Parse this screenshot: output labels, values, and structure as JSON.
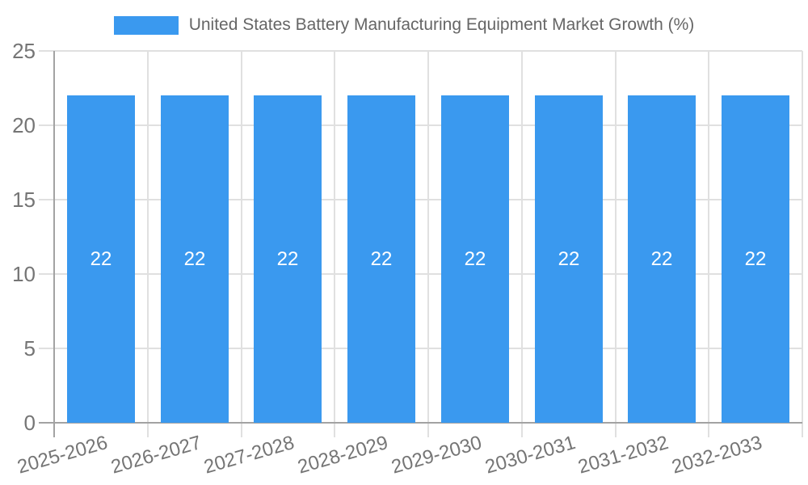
{
  "chart_data": {
    "type": "bar",
    "title": "United States Battery Manufacturing Equipment Market Growth (%)",
    "series_name": "United States Battery Manufacturing Equipment Market Growth (%)",
    "categories": [
      "2025-2026",
      "2026-2027",
      "2027-2028",
      "2028-2029",
      "2029-2030",
      "2030-2031",
      "2031-2032",
      "2032-2033"
    ],
    "values": [
      22,
      22,
      22,
      22,
      22,
      22,
      22,
      22
    ],
    "value_labels": [
      "22",
      "22",
      "22",
      "22",
      "22",
      "22",
      "22",
      "22"
    ],
    "xlabel": "",
    "ylabel": "",
    "ylim": [
      0,
      25
    ],
    "yticks": [
      0,
      5,
      10,
      15,
      20,
      25
    ],
    "ytick_labels": [
      "0",
      "5",
      "10",
      "15",
      "20",
      "25"
    ],
    "grid": true,
    "legend_position": "top",
    "colors": {
      "bar": "#3a99ef",
      "value_label": "#ffffff",
      "axis_line": "#a3a3a3",
      "gridline": "#e0e0e0",
      "tick_label": "#757575",
      "title": "#666666"
    }
  }
}
